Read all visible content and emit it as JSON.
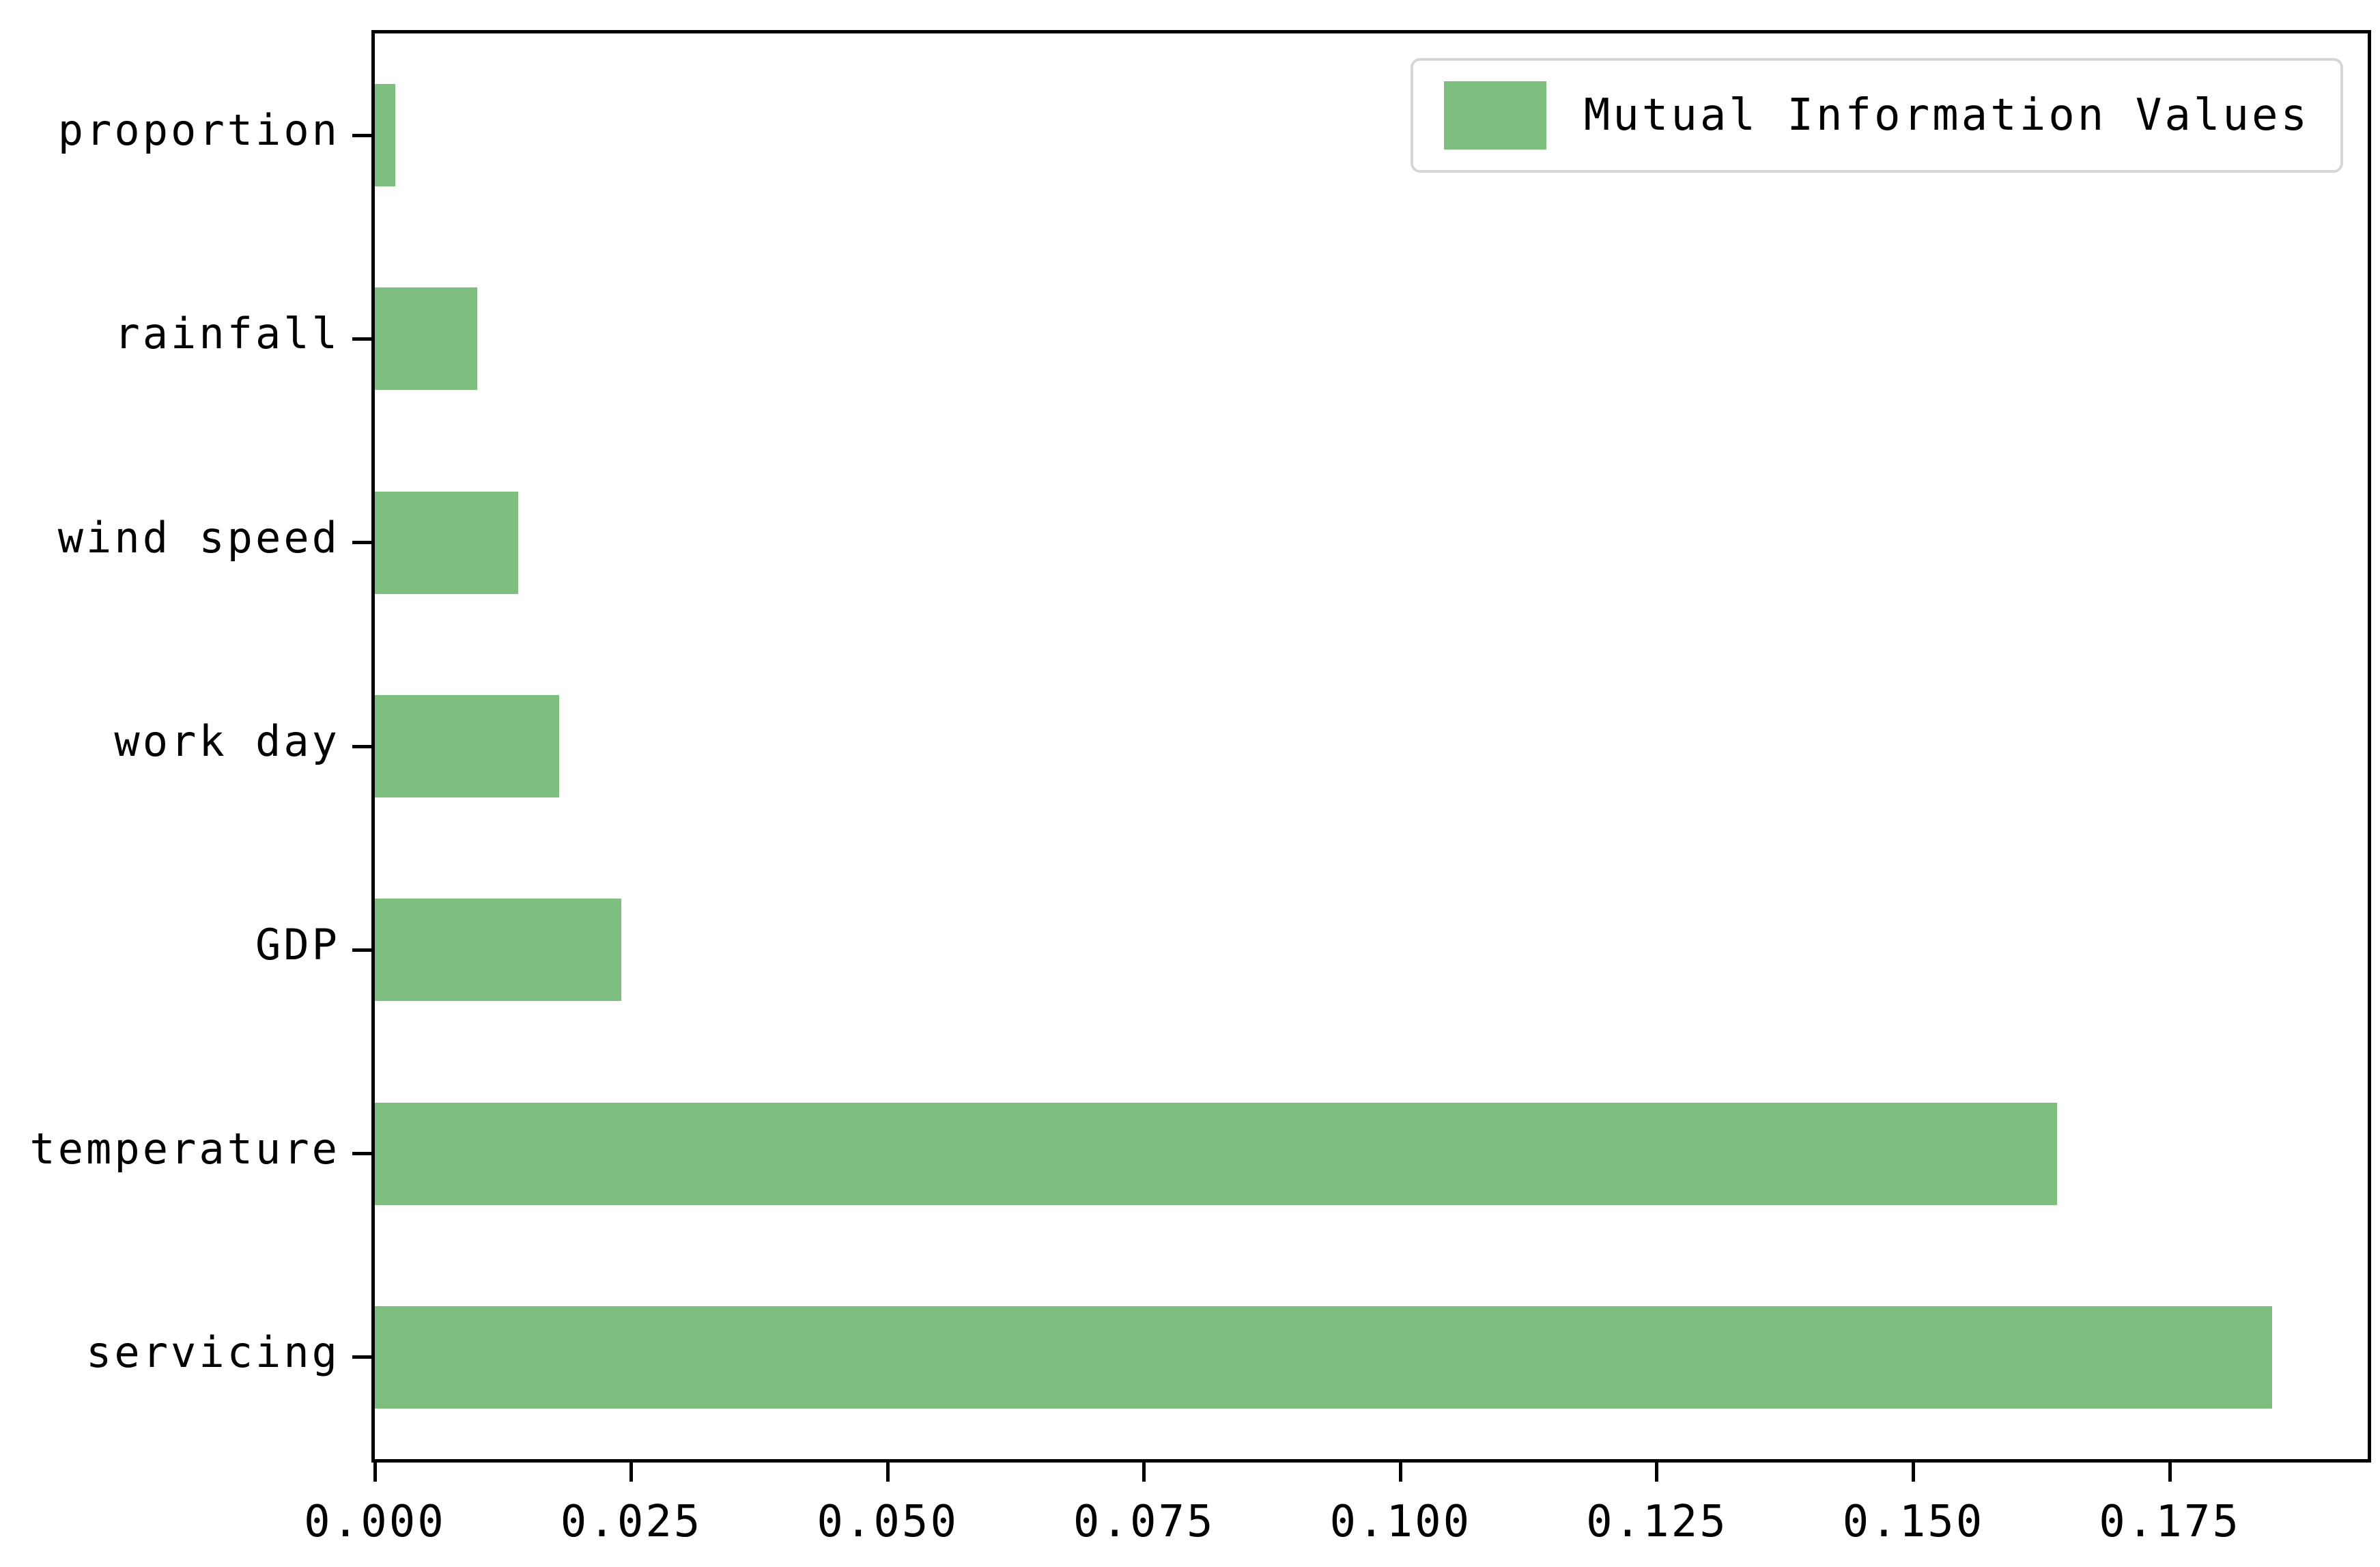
{
  "chart_data": {
    "type": "bar",
    "orientation": "horizontal",
    "categories_top_to_bottom": [
      "proportion",
      "rainfall",
      "wind speed",
      "work day",
      "GDP",
      "temperature",
      "servicing"
    ],
    "values_top_to_bottom": [
      0.002,
      0.01,
      0.014,
      0.018,
      0.024,
      0.164,
      0.185
    ],
    "legend": {
      "label": "Mutual Information Values",
      "position": "upper right"
    },
    "xlabel": "",
    "ylabel": "",
    "title": "",
    "xlim": [
      0,
      0.1943
    ],
    "x_tick_values": [
      0.0,
      0.025,
      0.05,
      0.075,
      0.1,
      0.125,
      0.15,
      0.175
    ],
    "x_tick_labels": [
      "0.000",
      "0.025",
      "0.050",
      "0.075",
      "0.100",
      "0.125",
      "0.150",
      "0.175"
    ],
    "bar_color": "#7ebe7e",
    "spine_color": "#000000",
    "grid": false
  }
}
